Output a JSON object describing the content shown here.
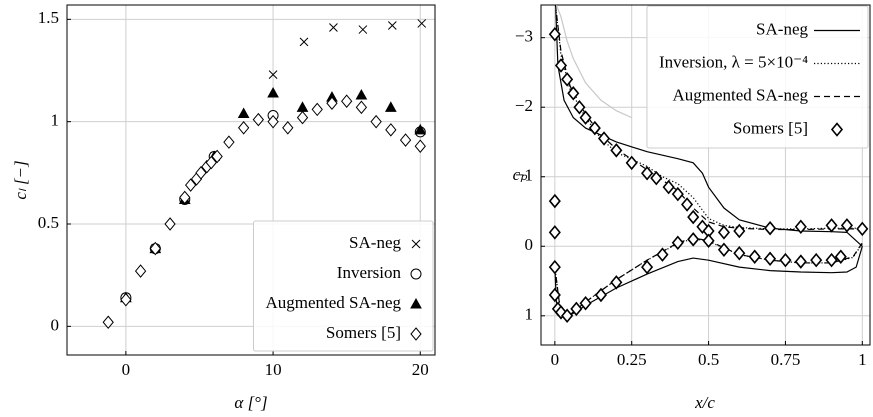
{
  "chart_data": [
    {
      "type": "scatter",
      "xlabel": "α [°]",
      "ylabel": "cₗ [−]",
      "xlim": [
        -4,
        21
      ],
      "ylim": [
        -0.14,
        1.57
      ],
      "xticks": [
        0,
        10,
        20
      ],
      "yticks": [
        0,
        0.5,
        1,
        1.5
      ],
      "grid": true,
      "legend": "lower right",
      "series": [
        {
          "name": "SA-neg",
          "marker": "x",
          "color": "#000000",
          "x": [
            0,
            2,
            4,
            6,
            10,
            12.1,
            14.1,
            16.1,
            18.1,
            20.1
          ],
          "values": [
            0.14,
            0.38,
            0.62,
            0.83,
            1.23,
            1.39,
            1.46,
            1.45,
            1.47,
            1.48
          ]
        },
        {
          "name": "Inversion",
          "marker": "circle",
          "color": "#000000",
          "x": [
            0,
            2,
            4,
            6,
            10,
            20
          ],
          "values": [
            0.14,
            0.38,
            0.62,
            0.83,
            1.03,
            0.95
          ]
        },
        {
          "name": "Augmented SA-neg",
          "marker": "triangle",
          "color": "#000000",
          "x": [
            0,
            2,
            4,
            6,
            8,
            10,
            12,
            14,
            16,
            18,
            20
          ],
          "values": [
            0.14,
            0.38,
            0.62,
            0.83,
            1.04,
            1.14,
            1.07,
            1.12,
            1.13,
            1.07,
            0.96
          ]
        },
        {
          "name": "Somers [5]",
          "marker": "diamond",
          "color": "#000000",
          "x": [
            -1.2,
            0,
            1,
            2,
            3,
            4,
            4.4,
            4.8,
            5.1,
            5.5,
            5.8,
            6.2,
            7,
            8,
            9,
            10,
            11,
            12,
            13,
            14,
            15,
            16,
            17,
            18,
            19,
            20
          ],
          "values": [
            0.02,
            0.13,
            0.27,
            0.38,
            0.5,
            0.63,
            0.69,
            0.72,
            0.75,
            0.78,
            0.8,
            0.83,
            0.9,
            0.97,
            1.01,
            1.0,
            0.97,
            1.02,
            1.06,
            1.09,
            1.1,
            1.07,
            1.0,
            0.96,
            0.91,
            0.88
          ]
        }
      ]
    },
    {
      "type": "line",
      "xlabel": "x/c",
      "ylabel": "cₚ",
      "xlim": [
        -0.045,
        1.025
      ],
      "ylim": [
        -3.47,
        1.42
      ],
      "invert_y": true,
      "xticks": [
        0,
        0.25,
        0.5,
        0.75,
        1
      ],
      "yticks": [
        {
          "value": -3,
          "label": "−3"
        },
        {
          "value": -2,
          "label": "−2"
        },
        {
          "value": -1,
          "label": "−1"
        },
        0,
        1
      ],
      "grid": true,
      "legend": "upper right",
      "series": [
        {
          "style": "solid",
          "color": "#c8c8c8",
          "x": [
            0.005,
            0.02,
            0.04,
            0.06,
            0.1,
            0.15,
            0.2,
            0.25
          ],
          "values": [
            -3.47,
            -3.3,
            -2.95,
            -2.7,
            -2.35,
            -2.1,
            -1.95,
            -1.85
          ]
        },
        {
          "name": "SA-neg",
          "style": "solid",
          "color": "#000000",
          "x": [
            0.003,
            0.01,
            0.03,
            0.06,
            0.1,
            0.15,
            0.2,
            0.3,
            0.4,
            0.45,
            0.48,
            0.5,
            0.55,
            0.6,
            0.7,
            0.8,
            0.9,
            0.95,
            1.0,
            null,
            0,
            0.005,
            0.02,
            0.04,
            0.1,
            0.2,
            0.3,
            0.4,
            0.45,
            0.5,
            0.6,
            0.7,
            0.8,
            0.9,
            0.95,
            0.98,
            1.0
          ],
          "values": [
            -3.4,
            -2.6,
            -2.1,
            -1.85,
            -1.7,
            -1.6,
            -1.5,
            -1.36,
            -1.26,
            -1.2,
            -1.05,
            -0.85,
            -0.55,
            -0.38,
            -0.26,
            -0.22,
            -0.21,
            -0.2,
            0,
            null,
            0.3,
            0.8,
            1.0,
            1.02,
            0.85,
            0.6,
            0.4,
            0.22,
            0.17,
            0.2,
            0.3,
            0.35,
            0.37,
            0.38,
            0.37,
            0.3,
            0
          ]
        },
        {
          "name": "Inversion, λ = 5×10⁻⁴",
          "style": "dotted",
          "color": "#000000",
          "x": [
            0.002,
            0.02,
            0.05,
            0.1,
            0.15,
            0.2,
            0.3,
            0.35,
            0.4,
            0.45,
            0.5,
            0.55,
            0.6,
            0.7,
            0.8,
            0.9,
            1.0,
            null,
            0,
            0.02,
            0.04,
            0.1,
            0.2,
            0.3,
            0.4,
            0.45,
            0.5,
            0.6,
            0.7,
            0.8,
            0.9,
            0.97,
            1.0
          ],
          "values": [
            -3.47,
            -2.75,
            -2.25,
            -1.85,
            -1.55,
            -1.35,
            -1.15,
            -1.0,
            -0.9,
            -0.7,
            -0.4,
            -0.3,
            -0.27,
            -0.25,
            -0.25,
            -0.26,
            -0.26,
            null,
            0.3,
            1.0,
            1.02,
            0.8,
            0.48,
            0.2,
            -0.04,
            -0.11,
            -0.07,
            0.12,
            0.2,
            0.24,
            0.24,
            0.16,
            -0.04
          ]
        },
        {
          "name": "Augmented SA-neg",
          "style": "dashed",
          "color": "#000000",
          "x": [
            0.002,
            0.02,
            0.05,
            0.1,
            0.15,
            0.2,
            0.3,
            0.35,
            0.4,
            0.45,
            0.5,
            0.55,
            0.6,
            0.7,
            0.8,
            0.9,
            1.0,
            null,
            0,
            0.02,
            0.04,
            0.1,
            0.2,
            0.3,
            0.4,
            0.45,
            0.5,
            0.6,
            0.7,
            0.8,
            0.9,
            0.97,
            1.0
          ],
          "values": [
            -3.47,
            -2.8,
            -2.3,
            -1.9,
            -1.6,
            -1.4,
            -1.1,
            -0.95,
            -0.8,
            -0.55,
            -0.35,
            -0.28,
            -0.26,
            -0.24,
            -0.24,
            -0.25,
            -0.25,
            null,
            0.3,
            1.0,
            1.02,
            0.8,
            0.48,
            0.2,
            -0.05,
            -0.12,
            -0.08,
            0.12,
            0.2,
            0.24,
            0.24,
            0.15,
            -0.05
          ]
        },
        {
          "name": "Somers [5]",
          "style": "none",
          "marker": "diamond",
          "color": "#000000",
          "x": [
            0,
            0,
            0,
            0,
            0,
            0.02,
            0.04,
            0.06,
            0.08,
            0.1,
            0.13,
            0.16,
            0.2,
            0.25,
            0.3,
            0.33,
            0.37,
            0.4,
            0.43,
            0.45,
            0.48,
            0.5,
            0.55,
            0.6,
            0.7,
            0.8,
            0.9,
            0.95,
            1.0,
            0.01,
            0.02,
            0.04,
            0.07,
            0.1,
            0.15,
            0.2,
            0.3,
            0.35,
            0.4,
            0.45,
            0.5,
            0.55,
            0.6,
            0.65,
            0.7,
            0.75,
            0.8,
            0.85,
            0.9,
            0.93
          ],
          "values": [
            -3.05,
            -0.65,
            -0.2,
            0.3,
            0.7,
            -2.6,
            -2.4,
            -2.2,
            -2.0,
            -1.85,
            -1.7,
            -1.55,
            -1.38,
            -1.2,
            -1.05,
            -0.98,
            -0.85,
            -0.75,
            -0.6,
            -0.42,
            -0.28,
            -0.22,
            -0.2,
            -0.22,
            -0.26,
            -0.28,
            -0.3,
            -0.3,
            -0.25,
            0.9,
            0.95,
            1.0,
            0.9,
            0.82,
            0.7,
            0.52,
            0.3,
            0.12,
            -0.05,
            -0.1,
            -0.08,
            0.05,
            0.1,
            0.15,
            0.18,
            0.2,
            0.22,
            0.2,
            0.2,
            0.15
          ]
        }
      ]
    }
  ]
}
